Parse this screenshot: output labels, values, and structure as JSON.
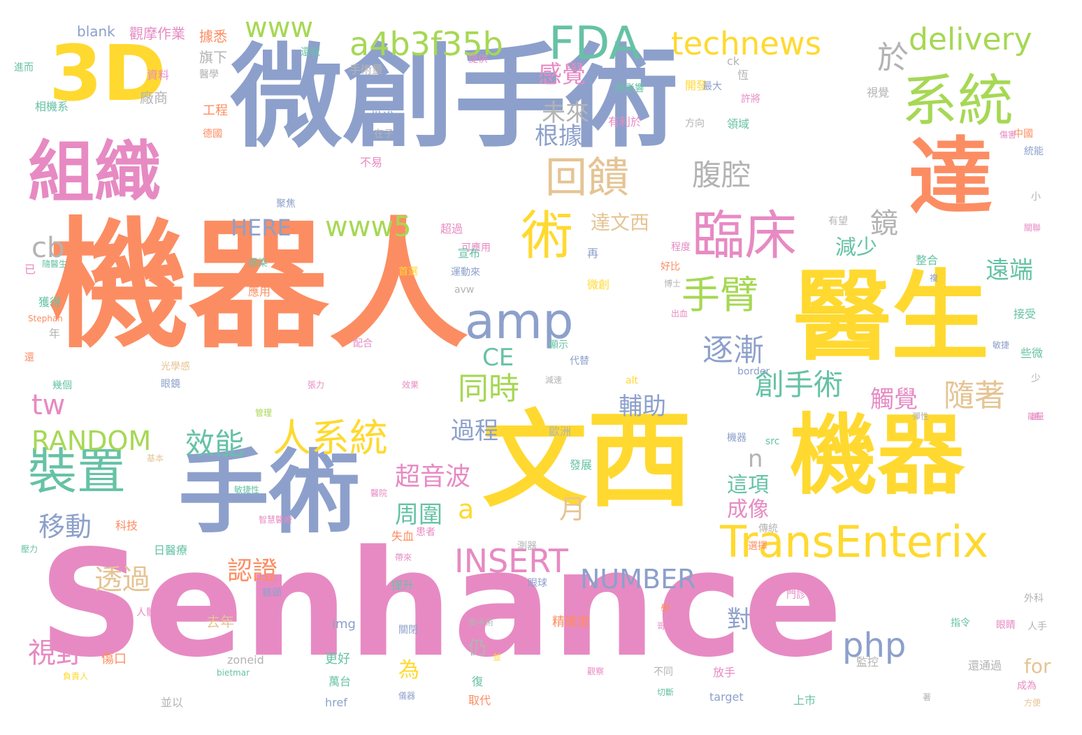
{
  "palette": {
    "orange": "#fc8d62",
    "blue": "#8da0cb",
    "pink": "#e78ac3",
    "lime": "#a6d854",
    "yellow": "#ffd92f",
    "tan": "#e5c494",
    "teal": "#66c2a5",
    "gray": "#b3b3b3"
  },
  "words": [
    {
      "text": "機器人",
      "size": 200,
      "color": "orange"
    },
    {
      "text": "微創手術",
      "size": 160,
      "color": "blue"
    },
    {
      "text": "Senhance",
      "size": 210,
      "color": "pink"
    },
    {
      "text": "文西",
      "size": 150,
      "color": "yellow"
    },
    {
      "text": "醫生",
      "size": 140,
      "color": "yellow"
    },
    {
      "text": "機器",
      "size": 125,
      "color": "yellow"
    },
    {
      "text": "手術",
      "size": 130,
      "color": "blue"
    },
    {
      "text": "達",
      "size": 120,
      "color": "orange"
    },
    {
      "text": "組織",
      "size": 95,
      "color": "pink"
    },
    {
      "text": "3D",
      "size": 110,
      "color": "yellow"
    },
    {
      "text": "系統",
      "size": 80,
      "color": "lime"
    },
    {
      "text": "臨床",
      "size": 75,
      "color": "pink"
    },
    {
      "text": "裝置",
      "size": 70,
      "color": "teal"
    },
    {
      "text": "術",
      "size": 75,
      "color": "yellow"
    },
    {
      "text": "amp",
      "size": 70,
      "color": "blue"
    },
    {
      "text": "FDA",
      "size": 65,
      "color": "teal"
    },
    {
      "text": "回饋",
      "size": 60,
      "color": "tan"
    },
    {
      "text": "TransEnterix",
      "size": 62,
      "color": "yellow"
    },
    {
      "text": "人系統",
      "size": 55,
      "color": "yellow"
    },
    {
      "text": "手臂",
      "size": 55,
      "color": "lime"
    },
    {
      "text": "a4b3f35b",
      "size": 46,
      "color": "lime"
    },
    {
      "text": "technews",
      "size": 45,
      "color": "yellow"
    },
    {
      "text": "delivery",
      "size": 44,
      "color": "lime"
    },
    {
      "text": "www",
      "size": 40,
      "color": "lime"
    },
    {
      "text": "於",
      "size": 45,
      "color": "gray"
    },
    {
      "text": "腹腔",
      "size": 42,
      "color": "gray"
    },
    {
      "text": "感覺",
      "size": 34,
      "color": "pink"
    },
    {
      "text": "未來",
      "size": 34,
      "color": "gray"
    },
    {
      "text": "根據",
      "size": 34,
      "color": "blue"
    },
    {
      "text": "鏡",
      "size": 40,
      "color": "gray"
    },
    {
      "text": "HERE",
      "size": 32,
      "color": "blue"
    },
    {
      "text": "www5",
      "size": 40,
      "color": "lime"
    },
    {
      "text": "達文西",
      "size": 28,
      "color": "tan"
    },
    {
      "text": "cb",
      "size": 40,
      "color": "gray"
    },
    {
      "text": "逐漸",
      "size": 44,
      "color": "blue"
    },
    {
      "text": "創手術",
      "size": 42,
      "color": "teal"
    },
    {
      "text": "觸覺",
      "size": 34,
      "color": "pink"
    },
    {
      "text": "隨著",
      "size": 44,
      "color": "tan"
    },
    {
      "text": "遠端",
      "size": 34,
      "color": "teal"
    },
    {
      "text": "減少",
      "size": 30,
      "color": "teal"
    },
    {
      "text": "效能",
      "size": 42,
      "color": "teal"
    },
    {
      "text": "同時",
      "size": 44,
      "color": "lime"
    },
    {
      "text": "輔助",
      "size": 34,
      "color": "blue"
    },
    {
      "text": "CE",
      "size": 34,
      "color": "teal"
    },
    {
      "text": "tw",
      "size": 40,
      "color": "pink"
    },
    {
      "text": "RANDOM",
      "size": 38,
      "color": "lime"
    },
    {
      "text": "過程",
      "size": 34,
      "color": "blue"
    },
    {
      "text": "n",
      "size": 34,
      "color": "gray"
    },
    {
      "text": "超音波",
      "size": 36,
      "color": "pink"
    },
    {
      "text": "這項",
      "size": 30,
      "color": "teal"
    },
    {
      "text": "成像",
      "size": 30,
      "color": "pink"
    },
    {
      "text": "移動",
      "size": 38,
      "color": "blue"
    },
    {
      "text": "a",
      "size": 38,
      "color": "yellow"
    },
    {
      "text": "月",
      "size": 38,
      "color": "tan"
    },
    {
      "text": "周圍",
      "size": 34,
      "color": "teal"
    },
    {
      "text": "INSERT",
      "size": 46,
      "color": "pink"
    },
    {
      "text": "NUMBER",
      "size": 38,
      "color": "blue"
    },
    {
      "text": "認證",
      "size": 36,
      "color": "orange"
    },
    {
      "text": "透過",
      "size": 40,
      "color": "tan"
    },
    {
      "text": "php",
      "size": 48,
      "color": "blue"
    },
    {
      "text": "對",
      "size": 34,
      "color": "blue"
    },
    {
      "text": "視野",
      "size": 40,
      "color": "pink"
    },
    {
      "text": "為",
      "size": 30,
      "color": "yellow"
    },
    {
      "text": "仍",
      "size": 26,
      "color": "gray"
    },
    {
      "text": "for",
      "size": 28,
      "color": "tan"
    },
    {
      "text": "blank",
      "size": 20,
      "color": "blue"
    },
    {
      "text": "觀摩作業",
      "size": 20,
      "color": "pink"
    },
    {
      "text": "據悉",
      "size": 20,
      "color": "orange"
    },
    {
      "text": "旗下",
      "size": 20,
      "color": "gray"
    },
    {
      "text": "還就",
      "size": 14,
      "color": "teal"
    },
    {
      "text": "進而",
      "size": 14,
      "color": "teal"
    },
    {
      "text": "資料",
      "size": 16,
      "color": "pink"
    },
    {
      "text": "醫學",
      "size": 14,
      "color": "gray"
    },
    {
      "text": "手術量",
      "size": 16,
      "color": "gray"
    },
    {
      "text": "廠商",
      "size": 20,
      "color": "gray"
    },
    {
      "text": "相機系",
      "size": 16,
      "color": "teal"
    },
    {
      "text": "工程",
      "size": 18,
      "color": "orange"
    },
    {
      "text": "德國",
      "size": 14,
      "color": "orange"
    },
    {
      "text": "批准",
      "size": 18,
      "color": "blue"
    },
    {
      "text": "在子",
      "size": 14,
      "color": "gray"
    },
    {
      "text": "不易",
      "size": 16,
      "color": "pink"
    },
    {
      "text": "聚焦",
      "size": 14,
      "color": "blue"
    },
    {
      "text": "超過",
      "size": 16,
      "color": "pink"
    },
    {
      "text": "可應用",
      "size": 14,
      "color": "pink"
    },
    {
      "text": "提供",
      "size": 14,
      "color": "pink"
    },
    {
      "text": "熱影響",
      "size": 14,
      "color": "teal"
    },
    {
      "text": "有利於",
      "size": 16,
      "color": "pink"
    },
    {
      "text": "開發",
      "size": 16,
      "color": "yellow"
    },
    {
      "text": "最大",
      "size": 14,
      "color": "blue"
    },
    {
      "text": "ck",
      "size": 16,
      "color": "gray"
    },
    {
      "text": "恆",
      "size": 16,
      "color": "gray"
    },
    {
      "text": "許將",
      "size": 14,
      "color": "pink"
    },
    {
      "text": "方向",
      "size": 14,
      "color": "gray"
    },
    {
      "text": "領域",
      "size": 16,
      "color": "teal"
    },
    {
      "text": "視覺",
      "size": 16,
      "color": "gray"
    },
    {
      "text": "中國",
      "size": 14,
      "color": "orange"
    },
    {
      "text": "傷害",
      "size": 12,
      "color": "pink"
    },
    {
      "text": "統能",
      "size": 14,
      "color": "blue"
    },
    {
      "text": "小",
      "size": 14,
      "color": "gray"
    },
    {
      "text": "關聯",
      "size": 12,
      "color": "pink"
    },
    {
      "text": "有望",
      "size": 14,
      "color": "gray"
    },
    {
      "text": "程度",
      "size": 14,
      "color": "pink"
    },
    {
      "text": "好比",
      "size": 14,
      "color": "orange"
    },
    {
      "text": "整合",
      "size": 16,
      "color": "teal"
    },
    {
      "text": "再",
      "size": 16,
      "color": "blue"
    },
    {
      "text": "宣布",
      "size": 16,
      "color": "teal"
    },
    {
      "text": "首選",
      "size": 14,
      "color": "yellow"
    },
    {
      "text": "運動來",
      "size": 14,
      "color": "blue"
    },
    {
      "text": "avw",
      "size": 14,
      "color": "gray"
    },
    {
      "text": "感染",
      "size": 14,
      "color": "teal"
    },
    {
      "text": "隨醫生",
      "size": 12,
      "color": "teal"
    },
    {
      "text": "已",
      "size": 16,
      "color": "pink"
    },
    {
      "text": "應用",
      "size": 16,
      "color": "orange"
    },
    {
      "text": "微創",
      "size": 16,
      "color": "yellow"
    },
    {
      "text": "博士",
      "size": 12,
      "color": "gray"
    },
    {
      "text": "複",
      "size": 12,
      "color": "blue"
    },
    {
      "text": "出血",
      "size": 12,
      "color": "pink"
    },
    {
      "text": "獲得",
      "size": 16,
      "color": "teal"
    },
    {
      "text": "Stephan",
      "size": 12,
      "color": "orange"
    },
    {
      "text": "年",
      "size": 16,
      "color": "gray"
    },
    {
      "text": "配合",
      "size": 14,
      "color": "pink"
    },
    {
      "text": "顯示",
      "size": 14,
      "color": "teal"
    },
    {
      "text": "代替",
      "size": 14,
      "color": "blue"
    },
    {
      "text": "接受",
      "size": 16,
      "color": "teal"
    },
    {
      "text": "敏捷",
      "size": 12,
      "color": "blue"
    },
    {
      "text": "快",
      "size": 14,
      "color": "yellow"
    },
    {
      "text": "些微",
      "size": 16,
      "color": "teal"
    },
    {
      "text": "還",
      "size": 14,
      "color": "orange"
    },
    {
      "text": "光學感",
      "size": 14,
      "color": "tan"
    },
    {
      "text": "眼鏡",
      "size": 14,
      "color": "blue"
    },
    {
      "text": "張力",
      "size": 12,
      "color": "pink"
    },
    {
      "text": "效果",
      "size": 12,
      "color": "pink"
    },
    {
      "text": "減速",
      "size": 12,
      "color": "gray"
    },
    {
      "text": "alt",
      "size": 14,
      "color": "yellow"
    },
    {
      "text": "border",
      "size": 14,
      "color": "blue"
    },
    {
      "text": "少",
      "size": 14,
      "color": "gray"
    },
    {
      "text": "幾個",
      "size": 14,
      "color": "teal"
    },
    {
      "text": "管理",
      "size": 12,
      "color": "lime"
    },
    {
      "text": "歐洲",
      "size": 16,
      "color": "gray"
    },
    {
      "text": "機器",
      "size": 14,
      "color": "blue"
    },
    {
      "text": "src",
      "size": 14,
      "color": "teal"
    },
    {
      "text": "讓",
      "size": 12,
      "color": "pink"
    },
    {
      "text": "彈性",
      "size": 12,
      "color": "gray"
    },
    {
      "text": "能量",
      "size": 12,
      "color": "pink"
    },
    {
      "text": "基本",
      "size": 12,
      "color": "tan"
    },
    {
      "text": "發展",
      "size": 16,
      "color": "teal"
    },
    {
      "text": "敏捷性",
      "size": 12,
      "color": "teal"
    },
    {
      "text": "醫院",
      "size": 12,
      "color": "pink"
    },
    {
      "text": "智慧醫療",
      "size": 12,
      "color": "pink"
    },
    {
      "text": "科技",
      "size": 16,
      "color": "orange"
    },
    {
      "text": "日醫療",
      "size": 16,
      "color": "teal"
    },
    {
      "text": "失血",
      "size": 16,
      "color": "orange"
    },
    {
      "text": "患者",
      "size": 14,
      "color": "pink"
    },
    {
      "text": "測器",
      "size": 14,
      "color": "gray"
    },
    {
      "text": "傳統",
      "size": 14,
      "color": "gray"
    },
    {
      "text": "選擇",
      "size": 14,
      "color": "orange"
    },
    {
      "text": "壓力",
      "size": 12,
      "color": "teal"
    },
    {
      "text": "帶來",
      "size": 12,
      "color": "pink"
    },
    {
      "text": "提升",
      "size": 16,
      "color": "teal"
    },
    {
      "text": "眼球",
      "size": 14,
      "color": "blue"
    },
    {
      "text": "門診",
      "size": 14,
      "color": "pink"
    },
    {
      "text": "外科",
      "size": 14,
      "color": "gray"
    },
    {
      "text": "人體",
      "size": 14,
      "color": "pink"
    },
    {
      "text": "工具",
      "size": 12,
      "color": "pink"
    },
    {
      "text": "鏡頭",
      "size": 14,
      "color": "blue"
    },
    {
      "text": "精確度",
      "size": 18,
      "color": "orange"
    },
    {
      "text": "學",
      "size": 14,
      "color": "orange"
    },
    {
      "text": "哥",
      "size": 12,
      "color": "pink"
    },
    {
      "text": "眼睛",
      "size": 14,
      "color": "pink"
    },
    {
      "text": "去年",
      "size": 20,
      "color": "tan"
    },
    {
      "text": "img",
      "size": 18,
      "color": "blue"
    },
    {
      "text": "關閉",
      "size": 14,
      "color": "blue"
    },
    {
      "text": "微手術",
      "size": 12,
      "color": "gray"
    },
    {
      "text": "指令",
      "size": 14,
      "color": "teal"
    },
    {
      "text": "人手",
      "size": 14,
      "color": "gray"
    },
    {
      "text": "傷口",
      "size": 18,
      "color": "orange"
    },
    {
      "text": "更好",
      "size": 18,
      "color": "teal"
    },
    {
      "text": "並",
      "size": 12,
      "color": "yellow"
    },
    {
      "text": "監控",
      "size": 16,
      "color": "gray"
    },
    {
      "text": "還通過",
      "size": 16,
      "color": "gray"
    },
    {
      "text": "zoneid",
      "size": 16,
      "color": "gray"
    },
    {
      "text": "bietmar",
      "size": 12,
      "color": "teal"
    },
    {
      "text": "負責人",
      "size": 12,
      "color": "yellow"
    },
    {
      "text": "萬台",
      "size": 16,
      "color": "teal"
    },
    {
      "text": "復",
      "size": 16,
      "color": "teal"
    },
    {
      "text": "觀察",
      "size": 12,
      "color": "pink"
    },
    {
      "text": "不同",
      "size": 14,
      "color": "gray"
    },
    {
      "text": "放手",
      "size": 16,
      "color": "pink"
    },
    {
      "text": "成為",
      "size": 14,
      "color": "pink"
    },
    {
      "text": "並以",
      "size": 16,
      "color": "gray"
    },
    {
      "text": "href",
      "size": 16,
      "color": "blue"
    },
    {
      "text": "儀器",
      "size": 12,
      "color": "blue"
    },
    {
      "text": "取代",
      "size": 16,
      "color": "orange"
    },
    {
      "text": "切斷",
      "size": 12,
      "color": "teal"
    },
    {
      "text": "target",
      "size": 16,
      "color": "blue"
    },
    {
      "text": "上市",
      "size": 16,
      "color": "teal"
    },
    {
      "text": "著",
      "size": 12,
      "color": "gray"
    },
    {
      "text": "方便",
      "size": 12,
      "color": "tan"
    }
  ]
}
